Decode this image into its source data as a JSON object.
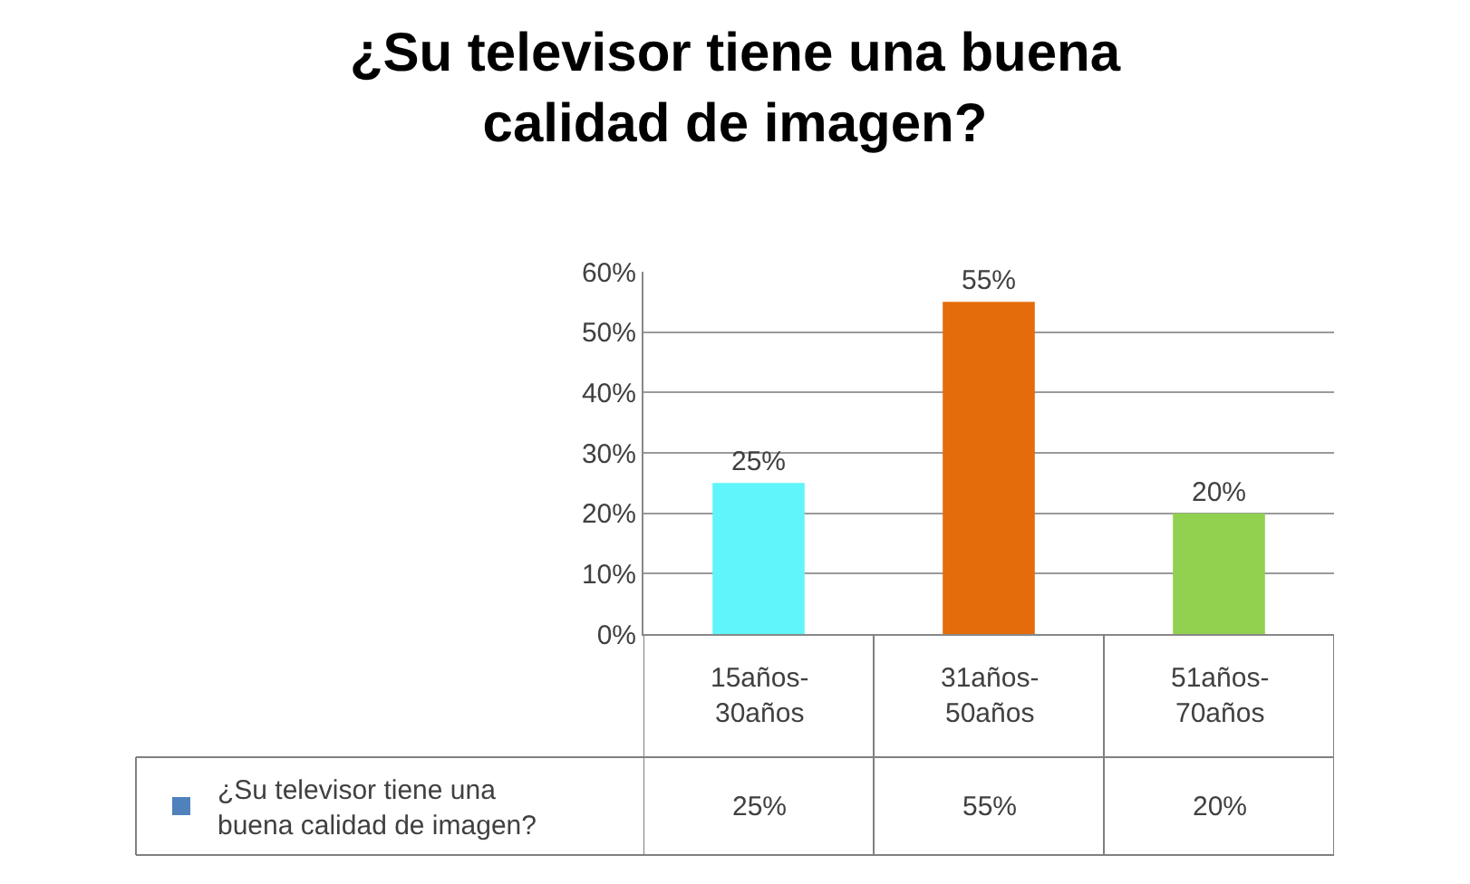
{
  "chart_data": {
    "type": "bar",
    "title": "¿Su televisor tiene una buena calidad de imagen?",
    "categories": [
      "15años-30años",
      "31años-50años",
      "51años-70años"
    ],
    "series": [
      {
        "name": "¿Su televisor tiene una buena calidad de imagen?",
        "color": "#4f81bd",
        "colors": [
          "#5ff5fa",
          "#e46c0a",
          "#92d050"
        ],
        "values": [
          25,
          55,
          20
        ],
        "value_labels": [
          "25%",
          "55%",
          "20%"
        ]
      }
    ],
    "ylim": [
      0,
      60
    ],
    "yticks": [
      {
        "value": 0,
        "label": "0%"
      },
      {
        "value": 10,
        "label": "10%"
      },
      {
        "value": 20,
        "label": "20%"
      },
      {
        "value": 30,
        "label": "30%"
      },
      {
        "value": 40,
        "label": "40%"
      },
      {
        "value": 50,
        "label": "50%"
      },
      {
        "value": 60,
        "label": "60%"
      }
    ],
    "grid": "y",
    "legend": "bottom left"
  }
}
